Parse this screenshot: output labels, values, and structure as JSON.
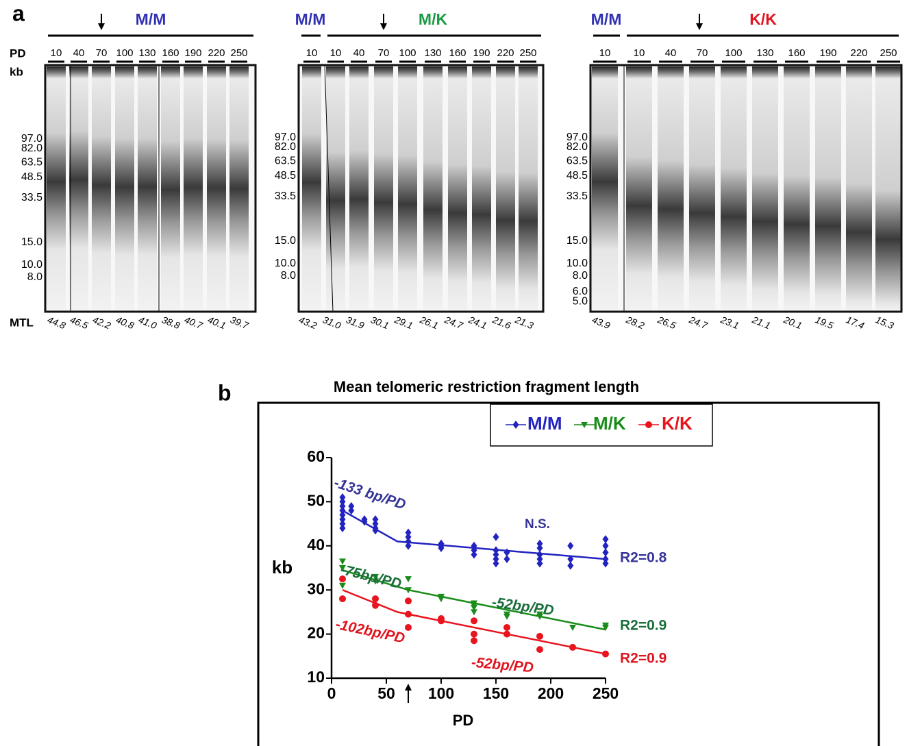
{
  "panel_a": {
    "label": "a",
    "row_labels": {
      "pd": "PD",
      "kb": "kb",
      "mtl": "MTL"
    },
    "gels": [
      {
        "groups": [
          {
            "label": "M/M",
            "color": "#3131b4"
          }
        ],
        "lanes": [
          "10",
          "40",
          "70",
          "100",
          "130",
          "160",
          "190",
          "220",
          "250"
        ],
        "mtl": [
          "44.8",
          "46.5",
          "42.2",
          "40.8",
          "41.0",
          "38.8",
          "40.7",
          "40.1",
          "39.7"
        ],
        "markers": [
          "97.0",
          "82.0",
          "63.5",
          "48.5",
          "33.5",
          "15.0",
          "10.0",
          "8.0"
        ]
      },
      {
        "groups": [
          {
            "label": "M/M",
            "color": "#3131b4"
          },
          {
            "label": "M/K",
            "color": "#1a9a44"
          }
        ],
        "lanes": [
          "10",
          "10",
          "40",
          "70",
          "100",
          "130",
          "160",
          "190",
          "220",
          "250"
        ],
        "mtl": [
          "43.2",
          "31.0",
          "31.9",
          "30.1",
          "29.1",
          "26.1",
          "24.7",
          "24.1",
          "21.6",
          "21.3"
        ],
        "markers": [
          "97.0",
          "82.0",
          "63.5",
          "48.5",
          "33.5",
          "15.0",
          "10.0",
          "8.0"
        ]
      },
      {
        "groups": [
          {
            "label": "M/M",
            "color": "#3131b4"
          },
          {
            "label": "K/K",
            "color": "#e0141e"
          }
        ],
        "lanes": [
          "10",
          "10",
          "40",
          "70",
          "100",
          "130",
          "160",
          "190",
          "220",
          "250"
        ],
        "mtl": [
          "43.9",
          "28.2",
          "26.5",
          "24.7",
          "23.1",
          "21.1",
          "20.1",
          "19.5",
          "17.4",
          "15.3"
        ],
        "markers": [
          "97.0",
          "82.0",
          "63.5",
          "48.5",
          "33.5",
          "15.0",
          "10.0",
          "8.0",
          "6.0",
          "5.0"
        ]
      }
    ]
  },
  "chart_data": {
    "type": "scatter",
    "panel_label": "b",
    "title": "Mean telomeric restriction fragment length",
    "x_label": "PD",
    "y_label": "kb",
    "xlim": [
      0,
      250
    ],
    "xticks": [
      0,
      50,
      100,
      150,
      200,
      250
    ],
    "ylim": [
      10,
      60
    ],
    "yticks": [
      10,
      20,
      30,
      40,
      50,
      60
    ],
    "legend": "top-right",
    "series": [
      {
        "name": "M/M",
        "color": "#2323c0",
        "marker": "diamond",
        "x": [
          10,
          10,
          10,
          10,
          10,
          10,
          10,
          10,
          18,
          18,
          30,
          30,
          40,
          40,
          40,
          40,
          70,
          70,
          70,
          70,
          100,
          100,
          100,
          130,
          130,
          130,
          150,
          150,
          150,
          150,
          150,
          160,
          160,
          190,
          190,
          190,
          190,
          190,
          218,
          218,
          218,
          250,
          250,
          250,
          250,
          250
        ],
        "values": [
          44,
          45,
          46,
          47,
          48,
          49,
          50,
          51,
          48,
          49,
          45.5,
          46,
          43.5,
          44,
          45,
          46,
          40,
          41,
          42,
          43,
          39.5,
          40,
          40.5,
          38,
          39,
          40,
          36,
          37,
          38,
          39,
          42,
          37,
          38.5,
          36,
          37,
          38,
          39.5,
          40.5,
          35.5,
          37,
          40,
          36,
          37,
          38.5,
          40,
          41.5
        ],
        "fit_x": [
          10,
          60,
          250
        ],
        "fit_values": [
          48,
          41,
          37
        ]
      },
      {
        "name": "M/K",
        "color": "#1a8c1a",
        "marker": "triangle",
        "x": [
          10,
          10,
          10,
          40,
          40,
          70,
          70,
          100,
          100,
          130,
          130,
          130,
          130,
          160,
          160,
          190,
          190,
          220,
          250,
          250
        ],
        "values": [
          31,
          35,
          36.5,
          32,
          33,
          30,
          32.5,
          28,
          28.5,
          25,
          26,
          26.5,
          27,
          24,
          24.5,
          24,
          24.5,
          21.5,
          21.5,
          22
        ],
        "fit_x": [
          10,
          70,
          250
        ],
        "fit_values": [
          34.5,
          30,
          21
        ]
      },
      {
        "name": "K/K",
        "color": "#e8141e",
        "marker": "circle",
        "x": [
          10,
          10,
          40,
          40,
          70,
          70,
          70,
          100,
          100,
          130,
          130,
          130,
          160,
          160,
          190,
          190,
          220,
          250
        ],
        "values": [
          28,
          32.5,
          26.5,
          28,
          21.5,
          24.5,
          27.5,
          23,
          23.5,
          18.5,
          20,
          23,
          20,
          21.5,
          16.5,
          19.5,
          17,
          15.5
        ],
        "fit_x": [
          10,
          60,
          250
        ],
        "fit_values": [
          30,
          25,
          15.5
        ]
      }
    ],
    "annotations": [
      {
        "text": "-133 bp/PD",
        "color": "#34349a"
      },
      {
        "text": "N.S.",
        "color": "#34349a"
      },
      {
        "text": "R2=0.8",
        "color": "#34349a"
      },
      {
        "text": "-75bp/PD",
        "color": "#1a6e3a"
      },
      {
        "text": "-52bp/PD",
        "color": "#1a6e3a"
      },
      {
        "text": "R2=0.9",
        "color": "#1a6e3a"
      },
      {
        "text": "-102bp/PD",
        "color": "#e0141e"
      },
      {
        "text": "-52bp/PD",
        "color": "#e0141e"
      },
      {
        "text": "R2=0.9",
        "color": "#e0141e"
      }
    ]
  }
}
